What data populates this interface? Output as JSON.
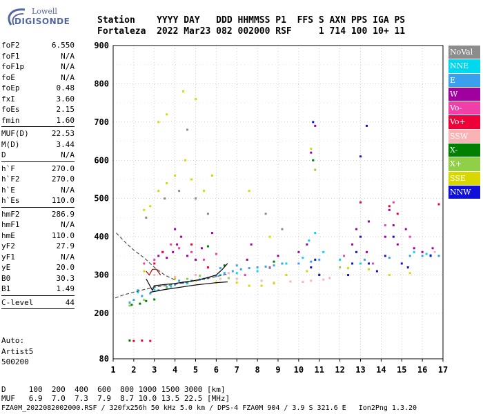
{
  "logo": {
    "line1": "Lowell",
    "line2": "DIGISONDE"
  },
  "header": {
    "line1": "Station    YYYY DAY   DDD HHMMSS P1  FFS S AXN PPS IGA PS",
    "line2": "Fortaleza  2022 Mar23 082 002000 RSF     1 714 100 10+ 11"
  },
  "params": {
    "group1": [
      {
        "label": "foF2",
        "value": "6.550"
      },
      {
        "label": "foF1",
        "value": "N/A"
      },
      {
        "label": "foF1p",
        "value": "N/A"
      },
      {
        "label": "foE",
        "value": "N/A"
      },
      {
        "label": "foEp",
        "value": "0.48"
      },
      {
        "label": "fxI",
        "value": "3.60"
      },
      {
        "label": "foEs",
        "value": "2.15"
      },
      {
        "label": "fmin",
        "value": "1.60"
      }
    ],
    "group2": [
      {
        "label": "MUF(D)",
        "value": "22.53"
      },
      {
        "label": "M(D)",
        "value": "3.44"
      },
      {
        "label": "D",
        "value": "N/A"
      }
    ],
    "group3": [
      {
        "label": "h`F",
        "value": "270.0"
      },
      {
        "label": "h`F2",
        "value": "270.0"
      },
      {
        "label": "h`E",
        "value": "N/A"
      },
      {
        "label": "h`Es",
        "value": "110.0"
      }
    ],
    "group4": [
      {
        "label": "hmF2",
        "value": "286.9"
      },
      {
        "label": "hmF1",
        "value": "N/A"
      },
      {
        "label": "hmE",
        "value": "110.0"
      },
      {
        "label": "yF2",
        "value": "27.9"
      },
      {
        "label": "yF1",
        "value": "N/A"
      },
      {
        "label": "yE",
        "value": "20.0"
      },
      {
        "label": "B0",
        "value": "30.3"
      },
      {
        "label": "B1",
        "value": "1.49"
      }
    ],
    "group5": [
      {
        "label": "C-level",
        "value": "44"
      }
    ]
  },
  "auto": {
    "line1": "Auto:",
    "line2": "Artist5",
    "line3": "500200"
  },
  "legend": [
    {
      "label": "NoVal",
      "color": "#8c8c8c"
    },
    {
      "label": "NNE",
      "color": "#00d8f0"
    },
    {
      "label": "E",
      "color": "#3aa0ee"
    },
    {
      "label": "W",
      "color": "#a000a0"
    },
    {
      "label": "Vo-",
      "color": "#f040a8"
    },
    {
      "label": "Vo+",
      "color": "#f00038"
    },
    {
      "label": "SSW",
      "color": "#f8b4b4"
    },
    {
      "label": "X-",
      "color": "#008000"
    },
    {
      "label": "X+",
      "color": "#90d048"
    },
    {
      "label": "SSE",
      "color": "#d8d800"
    },
    {
      "label": "NNW",
      "color": "#1010d8"
    }
  ],
  "footer": {
    "line1": "D     100  200  400  600  800 1000 1500 3000 [km]",
    "line2": "MUF   6.9  7.0  7.3  7.9  8.7 10.0 13.5 22.5 [MHz]",
    "line3": "FZA0M_2022082002000.RSF / 320fx256h 50 kHz 5.0 km / DPS-4 FZA0M 904 / 3.9 S 321.6 E   Ion2Png 1.3.20"
  },
  "chart_data": {
    "type": "scatter",
    "title": "",
    "xlabel": "",
    "ylabel": "",
    "xlim": [
      1,
      17
    ],
    "ylim": [
      80,
      900
    ],
    "x_ticks": [
      1,
      2,
      3,
      4,
      5,
      6,
      7,
      8,
      9,
      10,
      11,
      12,
      13,
      14,
      15,
      16,
      17
    ],
    "y_ticks": [
      80,
      200,
      300,
      400,
      500,
      600,
      700,
      800,
      900
    ],
    "grid": true,
    "legend_placement": "right",
    "series": [
      {
        "name": "E",
        "color": "#3aa0ee",
        "points": [
          [
            1.8,
            228
          ],
          [
            2.0,
            235
          ],
          [
            2.4,
            245
          ],
          [
            2.8,
            252
          ],
          [
            3.2,
            260
          ],
          [
            3.6,
            268
          ],
          [
            4.0,
            275
          ],
          [
            4.4,
            280
          ],
          [
            4.8,
            285
          ],
          [
            5.2,
            288
          ],
          [
            5.6,
            292
          ],
          [
            6.0,
            298
          ],
          [
            6.4,
            305
          ],
          [
            6.8,
            310
          ],
          [
            7.2,
            315
          ],
          [
            7.6,
            318
          ],
          [
            8.0,
            320
          ],
          [
            8.4,
            322
          ],
          [
            8.8,
            325
          ],
          [
            9.2,
            330
          ],
          [
            10.0,
            330
          ],
          [
            10.6,
            335
          ],
          [
            11.0,
            340
          ],
          [
            13.2,
            340
          ],
          [
            14.4,
            345
          ],
          [
            15.4,
            350
          ],
          [
            16.0,
            350
          ],
          [
            16.4,
            352
          ],
          [
            16.8,
            350
          ],
          [
            2.2,
            260
          ],
          [
            3.0,
            270
          ],
          [
            4.2,
            285
          ],
          [
            5.0,
            300
          ],
          [
            6.2,
            318
          ],
          [
            7.0,
            325
          ]
        ]
      },
      {
        "name": "NNE",
        "color": "#00d8f0",
        "points": [
          [
            2.2,
            255
          ],
          [
            3.0,
            262
          ],
          [
            3.8,
            270
          ],
          [
            4.6,
            278
          ],
          [
            5.4,
            290
          ],
          [
            6.2,
            300
          ],
          [
            7.0,
            305
          ],
          [
            8.0,
            310
          ],
          [
            8.6,
            318
          ],
          [
            9.4,
            330
          ],
          [
            10.2,
            345
          ],
          [
            10.5,
            390
          ],
          [
            10.8,
            410
          ],
          [
            11.2,
            360
          ],
          [
            12.0,
            340
          ],
          [
            13.0,
            330
          ],
          [
            15.6,
            360
          ],
          [
            16.2,
            355
          ]
        ]
      },
      {
        "name": "W",
        "color": "#a000a0",
        "points": [
          [
            3.2,
            350
          ],
          [
            3.6,
            345
          ],
          [
            3.9,
            360
          ],
          [
            4.0,
            420
          ],
          [
            4.1,
            380
          ],
          [
            4.3,
            400
          ],
          [
            4.6,
            350
          ],
          [
            5.0,
            340
          ],
          [
            5.3,
            370
          ],
          [
            5.8,
            410
          ],
          [
            7.5,
            340
          ],
          [
            7.7,
            380
          ],
          [
            9.0,
            350
          ],
          [
            10.0,
            360
          ],
          [
            10.4,
            380
          ],
          [
            12.6,
            380
          ],
          [
            12.8,
            420
          ],
          [
            13.3,
            360
          ],
          [
            13.4,
            440
          ],
          [
            14.2,
            400
          ],
          [
            14.4,
            470
          ],
          [
            14.6,
            430
          ],
          [
            14.8,
            380
          ],
          [
            15.2,
            420
          ],
          [
            15.6,
            370
          ],
          [
            16.0,
            360
          ],
          [
            16.5,
            370
          ],
          [
            10.8,
            690
          ],
          [
            10.6,
            620
          ]
        ]
      },
      {
        "name": "Vo-",
        "color": "#f040a8",
        "points": [
          [
            2.5,
            330
          ],
          [
            3.0,
            340
          ],
          [
            3.4,
            360
          ],
          [
            3.8,
            380
          ],
          [
            4.2,
            370
          ],
          [
            4.8,
            360
          ],
          [
            5.4,
            340
          ],
          [
            6.0,
            355
          ],
          [
            7.4,
            300
          ],
          [
            8.6,
            320
          ],
          [
            12.2,
            350
          ],
          [
            13.6,
            330
          ],
          [
            14.2,
            430
          ],
          [
            14.6,
            490
          ],
          [
            15.4,
            400
          ]
        ]
      },
      {
        "name": "Vo+",
        "color": "#f00038",
        "points": [
          [
            2.0,
            127
          ],
          [
            2.4,
            128
          ],
          [
            2.8,
            127
          ],
          [
            3.0,
            330
          ],
          [
            3.4,
            360
          ],
          [
            4.8,
            380
          ],
          [
            5.6,
            320
          ],
          [
            13.0,
            490
          ],
          [
            14.4,
            480
          ],
          [
            14.8,
            460
          ],
          [
            16.8,
            485
          ]
        ]
      },
      {
        "name": "SSW",
        "color": "#f8b4b4",
        "points": [
          [
            1.8,
            129
          ],
          [
            3.0,
            300
          ],
          [
            4.0,
            295
          ],
          [
            5.0,
            300
          ],
          [
            6.2,
            290
          ],
          [
            6.6,
            305
          ],
          [
            7.0,
            290
          ],
          [
            8.2,
            285
          ],
          [
            8.8,
            280
          ],
          [
            9.6,
            283
          ],
          [
            10.2,
            282
          ],
          [
            10.6,
            285
          ],
          [
            11.2,
            288
          ],
          [
            11.5,
            292
          ],
          [
            16.6,
            360
          ]
        ]
      },
      {
        "name": "X-",
        "color": "#008000",
        "points": [
          [
            1.9,
            222
          ],
          [
            2.3,
            225
          ],
          [
            2.6,
            232
          ],
          [
            3.0,
            236
          ],
          [
            5.6,
            375
          ],
          [
            6.4,
            325
          ],
          [
            8.8,
            335
          ],
          [
            10.7,
            600
          ],
          [
            1.8,
            128
          ]
        ]
      },
      {
        "name": "X+",
        "color": "#90d048",
        "points": [
          [
            1.8,
            220
          ],
          [
            2.5,
            235
          ],
          [
            3.6,
            265
          ],
          [
            4.6,
            290
          ],
          [
            5.2,
            298
          ],
          [
            6.6,
            292
          ],
          [
            10.8,
            575
          ],
          [
            12.0,
            320
          ]
        ]
      },
      {
        "name": "SSE",
        "color": "#d8d800",
        "points": [
          [
            2.5,
            470
          ],
          [
            2.8,
            480
          ],
          [
            3.2,
            520
          ],
          [
            3.6,
            540
          ],
          [
            4.0,
            560
          ],
          [
            4.5,
            600
          ],
          [
            4.8,
            550
          ],
          [
            5.4,
            520
          ],
          [
            5.8,
            560
          ],
          [
            3.2,
            700
          ],
          [
            3.6,
            720
          ],
          [
            4.4,
            780
          ],
          [
            5.0,
            760
          ],
          [
            2.5,
            310
          ],
          [
            4.0,
            290
          ],
          [
            5.0,
            285
          ],
          [
            6.0,
            280
          ],
          [
            7.0,
            280
          ],
          [
            7.6,
            272
          ],
          [
            8.2,
            272
          ],
          [
            8.8,
            278
          ],
          [
            9.4,
            300
          ],
          [
            10.4,
            310
          ],
          [
            11.0,
            302
          ],
          [
            12.4,
            318
          ],
          [
            13.4,
            315
          ],
          [
            14.4,
            300
          ],
          [
            15.4,
            305
          ],
          [
            8.6,
            400
          ],
          [
            7.6,
            520
          ],
          [
            10.6,
            630
          ]
        ]
      },
      {
        "name": "NNW",
        "color": "#1010d8",
        "points": [
          [
            10.6,
            320
          ],
          [
            10.8,
            340
          ],
          [
            11.0,
            300
          ],
          [
            12.4,
            300
          ],
          [
            12.6,
            330
          ],
          [
            12.8,
            360
          ],
          [
            13.0,
            400
          ],
          [
            13.4,
            330
          ],
          [
            13.8,
            310
          ],
          [
            14.2,
            350
          ],
          [
            14.6,
            400
          ],
          [
            15.0,
            330
          ],
          [
            15.3,
            320
          ],
          [
            16.4,
            350
          ],
          [
            10.7,
            700
          ],
          [
            13.0,
            610
          ],
          [
            13.3,
            690
          ]
        ]
      },
      {
        "name": "NoVal",
        "color": "#8c8c8c",
        "points": [
          [
            2.6,
            450
          ],
          [
            3.5,
            500
          ],
          [
            4.2,
            520
          ],
          [
            5.0,
            500
          ],
          [
            5.6,
            460
          ],
          [
            4.6,
            680
          ],
          [
            8.4,
            460
          ],
          [
            9.2,
            420
          ]
        ]
      }
    ],
    "traces": [
      {
        "color": "#000000",
        "style": "solid",
        "points": [
          [
            2.6,
            290
          ],
          [
            2.9,
            260
          ],
          [
            3.0,
            272
          ],
          [
            3.5,
            275
          ],
          [
            4.0,
            278
          ],
          [
            4.5,
            282
          ],
          [
            5.0,
            286
          ],
          [
            5.5,
            292
          ],
          [
            6.0,
            300
          ],
          [
            6.3,
            315
          ],
          [
            6.55,
            330
          ]
        ]
      },
      {
        "color": "#000000",
        "style": "solid",
        "points": [
          [
            2.8,
            255
          ],
          [
            3.5,
            262
          ],
          [
            4.0,
            266
          ],
          [
            4.5,
            270
          ],
          [
            5.0,
            274
          ],
          [
            5.5,
            277
          ],
          [
            6.0,
            280
          ],
          [
            6.55,
            282
          ]
        ]
      },
      {
        "color": "#a00000",
        "style": "solid",
        "points": [
          [
            2.6,
            310
          ],
          [
            2.75,
            300
          ],
          [
            2.9,
            315
          ],
          [
            3.1,
            315
          ],
          [
            3.3,
            300
          ]
        ]
      },
      {
        "color": "#505050",
        "style": "dashed",
        "points": [
          [
            1.15,
            410
          ],
          [
            1.6,
            385
          ],
          [
            2.0,
            365
          ],
          [
            2.5,
            345
          ],
          [
            3.0,
            320
          ],
          [
            3.5,
            300
          ],
          [
            4.0,
            287
          ]
        ]
      },
      {
        "color": "#505050",
        "style": "dashed",
        "points": [
          [
            1.1,
            240
          ],
          [
            1.5,
            248
          ],
          [
            2.0,
            255
          ],
          [
            2.5,
            262
          ],
          [
            3.0,
            268
          ],
          [
            3.5,
            272
          ],
          [
            4.0,
            276
          ],
          [
            4.5,
            280
          ],
          [
            5.0,
            285
          ],
          [
            5.5,
            290
          ],
          [
            6.0,
            296
          ],
          [
            6.5,
            302
          ]
        ]
      }
    ]
  }
}
